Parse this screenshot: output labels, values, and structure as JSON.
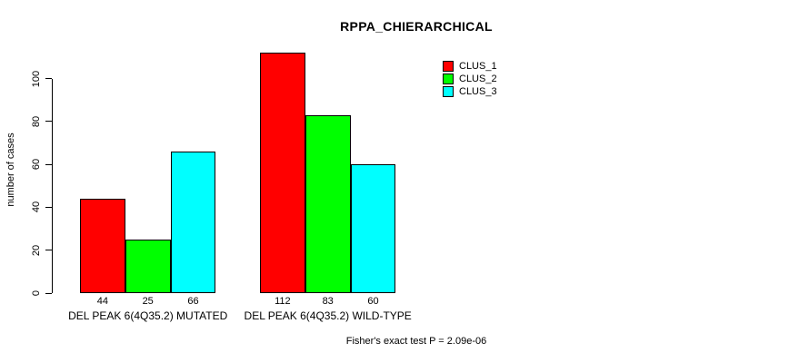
{
  "title": "RPPA_CHIERARCHICAL",
  "ylabel": "number of cases",
  "footer": "Fisher's exact test P = 2.09e-06",
  "chart_data": {
    "type": "bar",
    "title": "RPPA_CHIERARCHICAL",
    "ylabel": "number of cases",
    "xlabel": "",
    "categories": [
      "DEL PEAK 6(4Q35.2) MUTATED",
      "DEL PEAK 6(4Q35.2) WILD-TYPE"
    ],
    "series": [
      {
        "name": "CLUS_1",
        "color": "#FF0000",
        "values": [
          44,
          112
        ]
      },
      {
        "name": "CLUS_2",
        "color": "#00FF00",
        "values": [
          25,
          83
        ]
      },
      {
        "name": "CLUS_3",
        "color": "#00FFFF",
        "values": [
          66,
          60
        ]
      }
    ],
    "bar_value_labels": [
      [
        44,
        25,
        66
      ],
      [
        112,
        83,
        60
      ]
    ],
    "yticks": [
      0,
      20,
      40,
      60,
      80,
      100
    ],
    "ylim": [
      0,
      100
    ],
    "grid": false,
    "legend_position": "top-right",
    "annotation": "Fisher's exact test P = 2.09e-06"
  }
}
